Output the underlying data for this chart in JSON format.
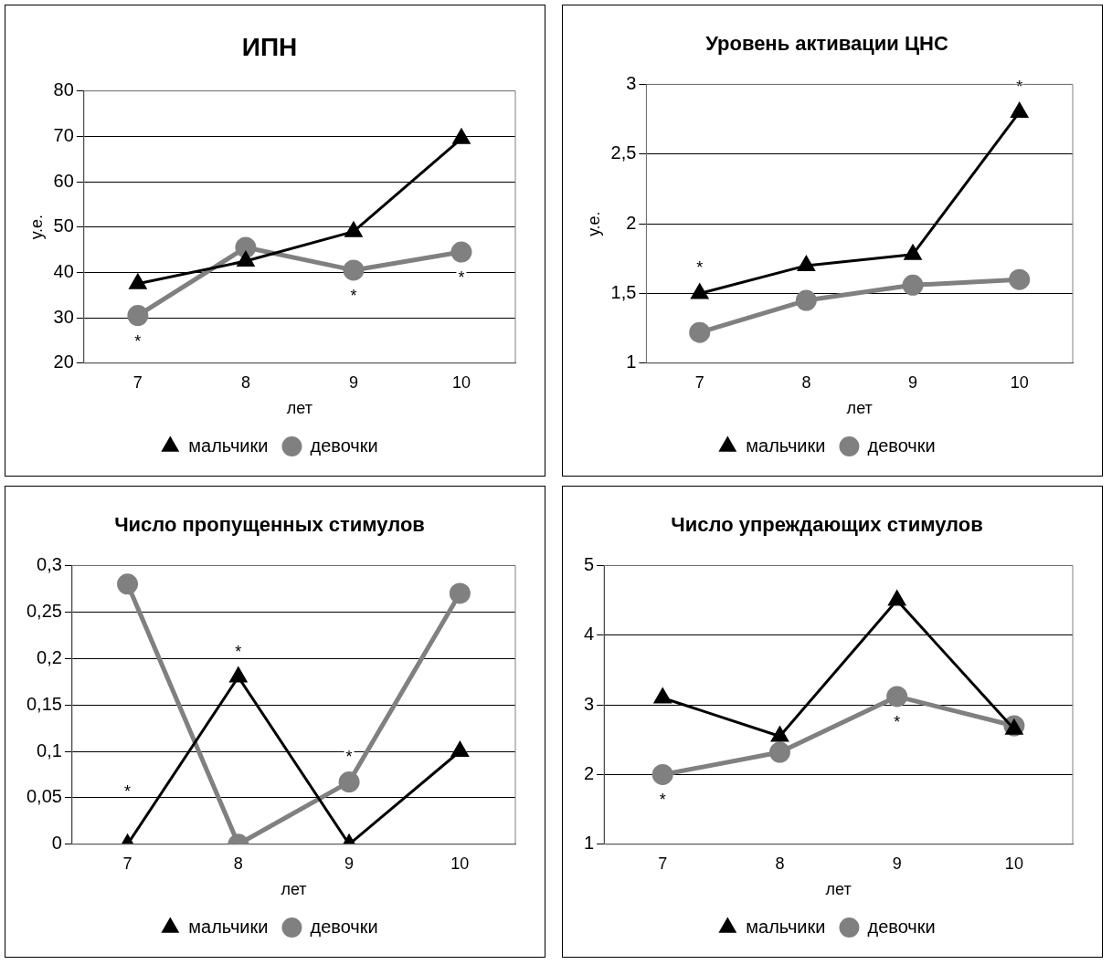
{
  "chart_data": [
    {
      "type": "line",
      "title": "ИПН",
      "xlabel": "лет",
      "ylabel": "у.е.",
      "categories": [
        "7",
        "8",
        "9",
        "10"
      ],
      "series": [
        {
          "name": "мальчики",
          "color": "#000000",
          "marker": "triangle",
          "values": [
            37.5,
            42.5,
            49,
            69.5
          ]
        },
        {
          "name": "девочки",
          "color": "#808080",
          "marker": "circle",
          "values": [
            30.5,
            45.5,
            40.5,
            44.5
          ]
        }
      ],
      "ylim": [
        20,
        80
      ],
      "yticks": [
        20,
        30,
        40,
        50,
        60,
        70,
        80
      ],
      "grid": "y",
      "legend": "bottom",
      "annotations": [
        {
          "text": "*",
          "x": "7",
          "y": 30.5
        },
        {
          "text": "*",
          "x": "9",
          "y": 40.5
        },
        {
          "text": "*",
          "x": "10",
          "y": 44.5
        }
      ]
    },
    {
      "type": "line",
      "title": "Уровень активации ЦНС",
      "xlabel": "лет",
      "ylabel": "у.е.",
      "categories": [
        "7",
        "8",
        "9",
        "10"
      ],
      "series": [
        {
          "name": "мальчики",
          "color": "#000000",
          "marker": "triangle",
          "values": [
            1.5,
            1.7,
            1.78,
            2.8
          ]
        },
        {
          "name": "девочки",
          "color": "#808080",
          "marker": "circle",
          "values": [
            1.22,
            1.45,
            1.56,
            1.6
          ]
        }
      ],
      "ylim": [
        1,
        3
      ],
      "yticks": [
        1,
        {
          "value": 1.5,
          "label": "1,5"
        },
        2,
        {
          "value": 2.5,
          "label": "2,5"
        },
        3
      ],
      "grid": "y",
      "legend": "bottom",
      "annotations": [
        {
          "text": "*",
          "x": "7",
          "y": 1.5
        },
        {
          "text": "*",
          "x": "10",
          "y": 2.8
        }
      ]
    },
    {
      "type": "line",
      "title": "Число пропущенных стимулов",
      "xlabel": "лет",
      "categories": [
        "7",
        "8",
        "9",
        "10"
      ],
      "series": [
        {
          "name": "мальчики",
          "color": "#000000",
          "marker": "triangle",
          "values": [
            0,
            0.18,
            0,
            0.1
          ]
        },
        {
          "name": "девочки",
          "color": "#808080",
          "marker": "circle",
          "values": [
            0.28,
            0,
            0.067,
            0.27
          ]
        }
      ],
      "ylim": [
        0,
        0.3
      ],
      "yticks": [
        0,
        {
          "value": 0.05,
          "label": "0,05"
        },
        {
          "value": 0.1,
          "label": "0,1"
        },
        {
          "value": 0.15,
          "label": "0,15"
        },
        {
          "value": 0.2,
          "label": "0,2"
        },
        {
          "value": 0.25,
          "label": "0,25"
        },
        {
          "value": 0.3,
          "label": "0,3"
        }
      ],
      "grid": "y",
      "legend": "bottom",
      "annotations": [
        {
          "text": "*",
          "x": "7",
          "y": 0
        },
        {
          "text": "*",
          "x": "8",
          "y": 0.18
        },
        {
          "text": "*",
          "x": "9",
          "y": 0.067
        }
      ]
    },
    {
      "type": "line",
      "title": "Число упреждающих стимулов",
      "xlabel": "лет",
      "categories": [
        "7",
        "8",
        "9",
        "10"
      ],
      "series": [
        {
          "name": "мальчики",
          "color": "#000000",
          "marker": "triangle",
          "values": [
            3.1,
            2.55,
            4.5,
            2.65
          ]
        },
        {
          "name": "девочки",
          "color": "#808080",
          "marker": "circle",
          "values": [
            2,
            2.32,
            3.12,
            2.7
          ]
        }
      ],
      "ylim": [
        1,
        5
      ],
      "yticks": [
        1,
        2,
        3,
        4,
        5
      ],
      "grid": "y",
      "legend": "bottom",
      "annotations": [
        {
          "text": "*",
          "x": "7",
          "y": 2
        },
        {
          "text": "*",
          "x": "9",
          "y": 3.12
        }
      ]
    }
  ]
}
